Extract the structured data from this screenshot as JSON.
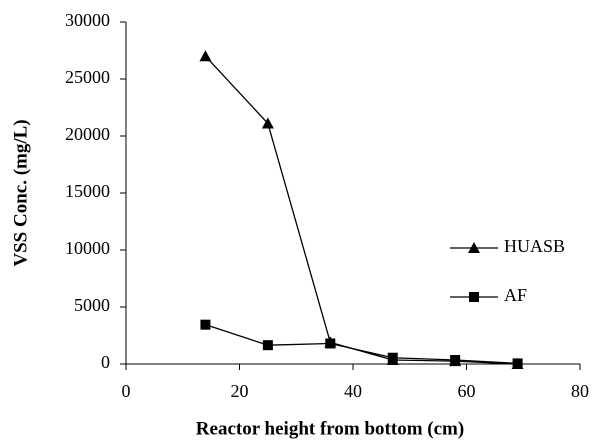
{
  "chart_data": {
    "type": "line",
    "x_label": "Reactor height from bottom (cm)",
    "y_label": "VSS Conc. (mg/L)",
    "x": [
      14,
      25,
      36,
      47,
      58,
      69
    ],
    "series": [
      {
        "name": "HUASB",
        "color": "#000000",
        "marker": "triangle",
        "values": [
          27000,
          21100,
          1900,
          350,
          250,
          0
        ]
      },
      {
        "name": "AF",
        "color": "#000000",
        "marker": "square",
        "values": [
          3450,
          1650,
          1800,
          550,
          350,
          50
        ]
      }
    ],
    "xlim": [
      0,
      80
    ],
    "xticks": [
      0,
      20,
      40,
      60,
      80
    ],
    "ylim": [
      0,
      30000
    ],
    "yticks": [
      0,
      5000,
      10000,
      15000,
      20000,
      25000,
      30000
    ],
    "grid": false,
    "legend": "right"
  }
}
